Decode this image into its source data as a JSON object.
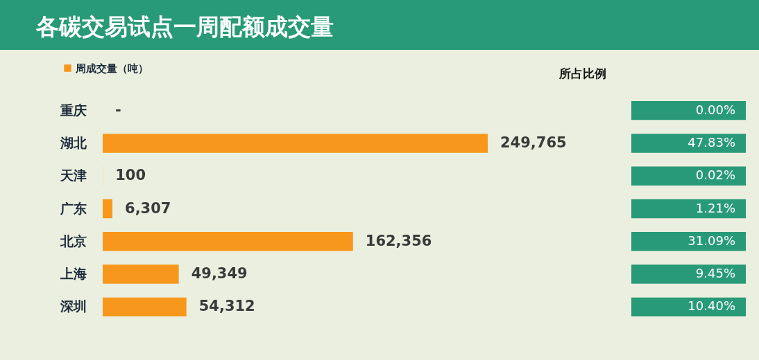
{
  "chart_data": {
    "type": "bar",
    "orientation": "horizontal",
    "title": "各碳交易试点一周配额成交量",
    "categories": [
      "重庆",
      "湖北",
      "天津",
      "广东",
      "北京",
      "上海",
      "深圳"
    ],
    "series": [
      {
        "name": "周成交量（吨）",
        "color": "#f7981d",
        "values": [
          null,
          249765,
          100,
          6307,
          162356,
          49349,
          54312
        ],
        "value_labels": [
          "-",
          "249,765",
          "100",
          "6,307",
          "162,356",
          "49,349",
          "54,312"
        ]
      }
    ],
    "tick_labels": "y",
    "legend": "top left",
    "annotations": [
      "所占比例",
      "0.00%",
      "47.83%",
      "0.02%",
      "1.21%",
      "31.09%",
      "9.45%",
      "10.40%"
    ]
  }
}
